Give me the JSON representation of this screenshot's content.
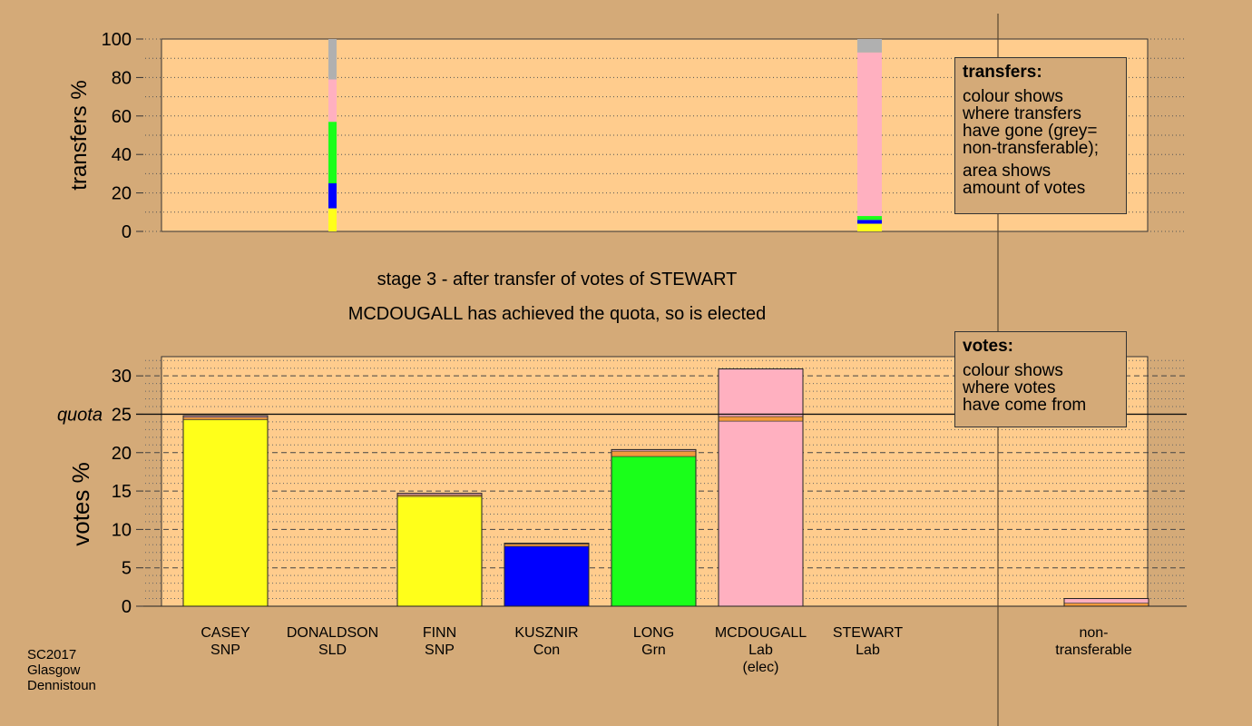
{
  "colors": {
    "background": "#d4aa78",
    "plot_bg": "#ffcc8d",
    "SNP": "#ffff1a",
    "Con": "#0000ff",
    "Grn": "#1aff1a",
    "Lab": "#ffb0c0",
    "transfer_band": "#f39a3b",
    "nontransferable": "#b0b0b0"
  },
  "stage_text": "stage 3 - after transfer of votes of STEWART",
  "elected_text": "MCDOUGALL has achieved the quota, so is elected",
  "footnote": [
    "SC2017",
    "Glasgow",
    "Dennistoun"
  ],
  "transfers_legend": {
    "title": "transfers:",
    "lines": [
      "colour shows",
      "where transfers",
      "have gone (grey=",
      "non-transferable);"
    ],
    "lines2": [
      "area shows",
      "amount of votes"
    ]
  },
  "votes_legend": {
    "title": "votes:",
    "lines": [
      "colour shows",
      "where votes",
      "have come from"
    ]
  },
  "chart_data": [
    {
      "type": "bar",
      "name": "transfers",
      "ylabel": "transfers %",
      "ylim": [
        0,
        100
      ],
      "yticks": [
        0,
        20,
        40,
        60,
        80,
        100
      ],
      "grid": true,
      "columns": [
        {
          "position": "DONALDSON",
          "segments": [
            {
              "to": "SNP",
              "percent": 12
            },
            {
              "to": "Con",
              "percent": 13
            },
            {
              "to": "Grn",
              "percent": 32
            },
            {
              "to": "Lab",
              "percent": 22
            },
            {
              "to": "non-transferable",
              "percent": 21
            }
          ]
        },
        {
          "position": "STEWART",
          "segments": [
            {
              "to": "SNP",
              "percent": 4
            },
            {
              "to": "Con",
              "percent": 2
            },
            {
              "to": "Grn",
              "percent": 2
            },
            {
              "to": "Lab",
              "percent": 85
            },
            {
              "to": "non-transferable",
              "percent": 7
            }
          ]
        }
      ]
    },
    {
      "type": "bar",
      "name": "votes",
      "ylabel": "votes %",
      "ylim": [
        0,
        32.5
      ],
      "yticks": [
        0,
        5,
        10,
        15,
        20,
        25,
        30
      ],
      "quota": 25,
      "quota_label": "quota",
      "grid": true,
      "categories": [
        {
          "name": "CASEY",
          "party": "SNP",
          "extra": "",
          "total": 24.8,
          "segments": [
            {
              "from": "SNP",
              "value": 24.3
            },
            {
              "from": "transfer",
              "value": 0.3
            },
            {
              "from": "Lab",
              "value": 0.2
            }
          ]
        },
        {
          "name": "DONALDSON",
          "party": "SLD",
          "extra": "",
          "total": 0,
          "segments": []
        },
        {
          "name": "FINN",
          "party": "SNP",
          "extra": "",
          "total": 14.7,
          "segments": [
            {
              "from": "SNP",
              "value": 14.3
            },
            {
              "from": "transfer",
              "value": 0.2
            },
            {
              "from": "Lab",
              "value": 0.2
            }
          ]
        },
        {
          "name": "KUSZNIR",
          "party": "Con",
          "extra": "",
          "total": 8.2,
          "segments": [
            {
              "from": "Con",
              "value": 7.8
            },
            {
              "from": "transfer",
              "value": 0.3
            },
            {
              "from": "Lab",
              "value": 0.1
            }
          ]
        },
        {
          "name": "LONG",
          "party": "Grn",
          "extra": "",
          "total": 20.4,
          "segments": [
            {
              "from": "Grn",
              "value": 19.5
            },
            {
              "from": "transfer",
              "value": 0.7
            },
            {
              "from": "Lab",
              "value": 0.2
            }
          ]
        },
        {
          "name": "MCDOUGALL",
          "party": "Lab",
          "extra": "(elec)",
          "total": 30.9,
          "segments": [
            {
              "from": "Lab",
              "value": 24.1
            },
            {
              "from": "transfer",
              "value": 0.6
            },
            {
              "from": "Lab",
              "value": 6.2
            }
          ]
        },
        {
          "name": "STEWART",
          "party": "Lab",
          "extra": "",
          "total": 0,
          "segments": []
        }
      ],
      "nontransferable": {
        "label_line1": "non-",
        "label_line2": "transferable",
        "total": 1.0,
        "segments": [
          {
            "from": "transfer",
            "value": 0.4
          },
          {
            "from": "Lab",
            "value": 0.6
          }
        ]
      }
    }
  ]
}
